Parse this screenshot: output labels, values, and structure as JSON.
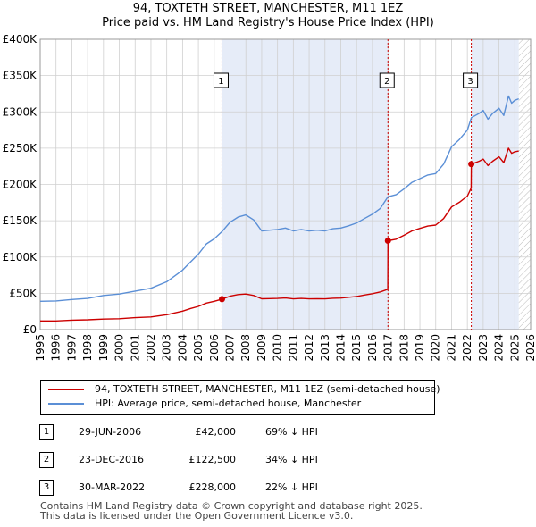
{
  "title": "94, TOXTETH STREET, MANCHESTER, M11 1EZ",
  "subtitle": "Price paid vs. HM Land Registry's House Price Index (HPI)",
  "colors": {
    "property": "#cc0000",
    "hpi": "#5b8fd6",
    "shade": "#e6ecf8",
    "grid": "#d0d0d0",
    "future_hatch": "#bbbbbb"
  },
  "legend": {
    "property_label": "94, TOXTETH STREET, MANCHESTER, M11 1EZ (semi-detached house)",
    "hpi_label": "HPI: Average price, semi-detached house, Manchester"
  },
  "transactions": [
    {
      "num": "1",
      "date": "29-JUN-2006",
      "price": "£42,000",
      "hpi": "69% ↓ HPI"
    },
    {
      "num": "2",
      "date": "23-DEC-2016",
      "price": "£122,500",
      "hpi": "34% ↓ HPI"
    },
    {
      "num": "3",
      "date": "30-MAR-2022",
      "price": "£228,000",
      "hpi": "22% ↓ HPI"
    }
  ],
  "footer": {
    "line1": "Contains HM Land Registry data © Crown copyright and database right 2025.",
    "line2": "This data is licensed under the Open Government Licence v3.0."
  },
  "chart_data": {
    "type": "line",
    "xlim": [
      1995,
      2026
    ],
    "ylim": [
      0,
      400000
    ],
    "x_ticks": [
      1995,
      1996,
      1997,
      1998,
      1999,
      2000,
      2001,
      2002,
      2003,
      2004,
      2005,
      2006,
      2007,
      2008,
      2009,
      2010,
      2011,
      2012,
      2013,
      2014,
      2015,
      2016,
      2017,
      2018,
      2019,
      2020,
      2021,
      2022,
      2023,
      2024,
      2025,
      2026
    ],
    "y_ticks": [
      {
        "value": 0,
        "label": "£0"
      },
      {
        "value": 50000,
        "label": "£50K"
      },
      {
        "value": 100000,
        "label": "£100K"
      },
      {
        "value": 150000,
        "label": "£150K"
      },
      {
        "value": 200000,
        "label": "£200K"
      },
      {
        "value": 250000,
        "label": "£250K"
      },
      {
        "value": 300000,
        "label": "£300K"
      },
      {
        "value": 350000,
        "label": "£350K"
      },
      {
        "value": 400000,
        "label": "£400K"
      }
    ],
    "shaded_periods": [
      [
        2006.49,
        2016.98
      ],
      [
        2022.25,
        2025.25
      ]
    ],
    "future_from": 2025.25,
    "markers": [
      {
        "label": "1",
        "x": 2006.49,
        "y": 42000
      },
      {
        "label": "2",
        "x": 2016.98,
        "y": 122500
      },
      {
        "label": "3",
        "x": 2022.25,
        "y": 228000
      }
    ],
    "series": [
      {
        "name": "HPI: Average price, semi-detached house, Manchester",
        "points": [
          [
            1995.0,
            39000
          ],
          [
            1996.0,
            39500
          ],
          [
            1997.0,
            41500
          ],
          [
            1998.0,
            43000
          ],
          [
            1999.0,
            47000
          ],
          [
            2000.0,
            49000
          ],
          [
            2001.0,
            53000
          ],
          [
            2002.0,
            57000
          ],
          [
            2003.0,
            66000
          ],
          [
            2004.0,
            82000
          ],
          [
            2004.5,
            93000
          ],
          [
            2005.0,
            104000
          ],
          [
            2005.5,
            118000
          ],
          [
            2006.0,
            125000
          ],
          [
            2006.49,
            135000
          ],
          [
            2007.0,
            148000
          ],
          [
            2007.5,
            155000
          ],
          [
            2008.0,
            158000
          ],
          [
            2008.5,
            151000
          ],
          [
            2009.0,
            136000
          ],
          [
            2009.5,
            137000
          ],
          [
            2010.0,
            138000
          ],
          [
            2010.5,
            140000
          ],
          [
            2011.0,
            136000
          ],
          [
            2011.5,
            138000
          ],
          [
            2012.0,
            136000
          ],
          [
            2012.5,
            137000
          ],
          [
            2013.0,
            136000
          ],
          [
            2013.5,
            139000
          ],
          [
            2014.0,
            140000
          ],
          [
            2014.5,
            143000
          ],
          [
            2015.0,
            147000
          ],
          [
            2015.5,
            153000
          ],
          [
            2016.0,
            159000
          ],
          [
            2016.5,
            167000
          ],
          [
            2016.98,
            183000
          ],
          [
            2017.5,
            186000
          ],
          [
            2018.0,
            194000
          ],
          [
            2018.5,
            203000
          ],
          [
            2019.0,
            208000
          ],
          [
            2019.5,
            213000
          ],
          [
            2020.0,
            215000
          ],
          [
            2020.5,
            228000
          ],
          [
            2021.0,
            252000
          ],
          [
            2021.5,
            262000
          ],
          [
            2022.0,
            275000
          ],
          [
            2022.25,
            292000
          ],
          [
            2022.75,
            298000
          ],
          [
            2023.0,
            302000
          ],
          [
            2023.3,
            290000
          ],
          [
            2023.6,
            298000
          ],
          [
            2024.0,
            305000
          ],
          [
            2024.3,
            295000
          ],
          [
            2024.6,
            322000
          ],
          [
            2024.8,
            312000
          ],
          [
            2025.0,
            316000
          ],
          [
            2025.25,
            318000
          ]
        ]
      },
      {
        "name": "94, TOXTETH STREET, MANCHESTER, M11 1EZ (semi-detached house)",
        "points": [
          [
            1995.0,
            12000
          ],
          [
            1996.0,
            12000
          ],
          [
            1997.0,
            13000
          ],
          [
            1998.0,
            13500
          ],
          [
            1999.0,
            14500
          ],
          [
            2000.0,
            15000
          ],
          [
            2001.0,
            16500
          ],
          [
            2002.0,
            17500
          ],
          [
            2003.0,
            20500
          ],
          [
            2004.0,
            25500
          ],
          [
            2004.5,
            29000
          ],
          [
            2005.0,
            32000
          ],
          [
            2005.5,
            36500
          ],
          [
            2006.0,
            39000
          ],
          [
            2006.49,
            42000
          ],
          [
            2007.0,
            46000
          ],
          [
            2007.5,
            48200
          ],
          [
            2008.0,
            49000
          ],
          [
            2008.5,
            47000
          ],
          [
            2009.0,
            42500
          ],
          [
            2009.5,
            42700
          ],
          [
            2010.0,
            43000
          ],
          [
            2010.5,
            43600
          ],
          [
            2011.0,
            42300
          ],
          [
            2011.5,
            43000
          ],
          [
            2012.0,
            42300
          ],
          [
            2012.5,
            42600
          ],
          [
            2013.0,
            42300
          ],
          [
            2013.5,
            43200
          ],
          [
            2014.0,
            43500
          ],
          [
            2014.5,
            44500
          ],
          [
            2015.0,
            45700
          ],
          [
            2015.5,
            47600
          ],
          [
            2016.0,
            49500
          ],
          [
            2016.5,
            52000
          ],
          [
            2016.97,
            55500
          ],
          [
            2016.98,
            122500
          ],
          [
            2017.5,
            124500
          ],
          [
            2018.0,
            130000
          ],
          [
            2018.5,
            136000
          ],
          [
            2019.0,
            139500
          ],
          [
            2019.5,
            142700
          ],
          [
            2020.0,
            144000
          ],
          [
            2020.5,
            153000
          ],
          [
            2021.0,
            169000
          ],
          [
            2021.5,
            175500
          ],
          [
            2022.0,
            184000
          ],
          [
            2022.24,
            195000
          ],
          [
            2022.25,
            228000
          ],
          [
            2022.75,
            232000
          ],
          [
            2023.0,
            235000
          ],
          [
            2023.3,
            226000
          ],
          [
            2023.6,
            232000
          ],
          [
            2024.0,
            238000
          ],
          [
            2024.3,
            230000
          ],
          [
            2024.6,
            250000
          ],
          [
            2024.8,
            243000
          ],
          [
            2025.0,
            245000
          ],
          [
            2025.25,
            246000
          ]
        ]
      }
    ]
  }
}
